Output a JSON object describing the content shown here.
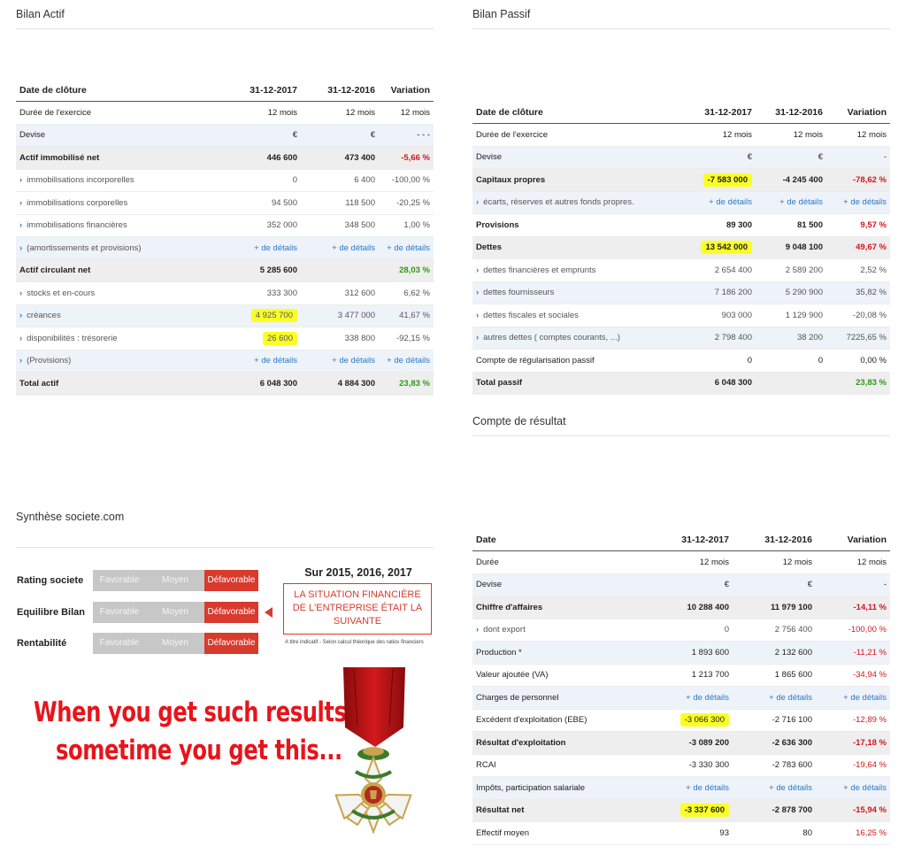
{
  "actif": {
    "title": "Bilan Actif",
    "headers": [
      "Date de clôture",
      "31-12-2017",
      "31-12-2016",
      "Variation"
    ],
    "rows": [
      {
        "label": "Durée de l'exercice",
        "c1": "12 mois",
        "c2": "12 mois",
        "var": "12 mois",
        "style": "normal"
      },
      {
        "label": "Devise",
        "c1": "€",
        "c2": "€",
        "var": "- - -",
        "style": "light"
      },
      {
        "label": "Actif immobilisé net",
        "c1": "446 600",
        "c2": "473 400",
        "var": "-5,66 %",
        "style": "bold",
        "varColor": "neg"
      },
      {
        "label": "immobilisations incorporelles",
        "c1": "0",
        "c2": "6 400",
        "var": "-100,00 %",
        "style": "normal",
        "chev": true,
        "sub": true
      },
      {
        "label": "immobilisations corporelles",
        "c1": "94 500",
        "c2": "118 500",
        "var": "-20,25 %",
        "style": "normal",
        "chev": true,
        "sub": true
      },
      {
        "label": "immobilisations financières",
        "c1": "352 000",
        "c2": "348 500",
        "var": "1,00 %",
        "style": "normal",
        "chev": true,
        "sub": true
      },
      {
        "label": "(amortissements et provisions)",
        "c1": "+ de détails",
        "c2": "+ de détails",
        "var": "+ de détails",
        "style": "light",
        "chev": true,
        "sub": true,
        "link": true
      },
      {
        "label": "Actif circulant net",
        "c1": "5 285 600",
        "c2": "",
        "var": "28,03 %",
        "style": "bold",
        "varColor": "pos"
      },
      {
        "label": "stocks et en-cours",
        "c1": "333 300",
        "c2": "312 600",
        "var": "6,62 %",
        "style": "normal",
        "chev": true,
        "sub": true
      },
      {
        "label": "créances",
        "c1": "4 925 700",
        "c2": "3 477 000",
        "var": "41,67 %",
        "style": "light",
        "chev": true,
        "sub": true,
        "hl": true
      },
      {
        "label": "disponibilités : trésorerie",
        "c1": "26 600",
        "c2": "338 800",
        "var": "-92,15 %",
        "style": "normal",
        "chev": true,
        "sub": true,
        "hl": true
      },
      {
        "label": "(Provisions)",
        "c1": "+ de détails",
        "c2": "+ de détails",
        "var": "+ de détails",
        "style": "light",
        "chev": true,
        "sub": true,
        "link": true
      },
      {
        "label": "Total actif",
        "c1": "6 048 300",
        "c2": "4 884 300",
        "var": "23,83 %",
        "style": "bold",
        "varColor": "pos"
      }
    ]
  },
  "passif": {
    "title": "Bilan Passif",
    "headers": [
      "Date de clôture",
      "31-12-2017",
      "31-12-2016",
      "Variation"
    ],
    "rows": [
      {
        "label": "Durée de l'exercice",
        "c1": "12 mois",
        "c2": "12 mois",
        "var": "12 mois",
        "style": "normal"
      },
      {
        "label": "Devise",
        "c1": "€",
        "c2": "€",
        "var": "-",
        "style": "light"
      },
      {
        "label": "Capitaux propres",
        "c1": "-7 583 000",
        "c2": "-4 245 400",
        "var": "-78,62 %",
        "style": "bold",
        "varColor": "neg",
        "hl": true
      },
      {
        "label": "écarts, réserves et autres fonds propres.",
        "c1": "+ de détails",
        "c2": "+ de détails",
        "var": "+ de détails",
        "style": "light",
        "chev": true,
        "sub": true,
        "link": true
      },
      {
        "label": "Provisions",
        "c1": "89 300",
        "c2": "81 500",
        "var": "9,57 %",
        "style": "normalbold",
        "varColor": "neg"
      },
      {
        "label": "Dettes",
        "c1": "13 542 000",
        "c2": "9 048 100",
        "var": "49,67 %",
        "style": "bold",
        "varColor": "neg",
        "hl": true
      },
      {
        "label": "dettes financières et emprunts",
        "c1": "2 654 400",
        "c2": "2 589 200",
        "var": "2,52 %",
        "style": "normal",
        "chev": true,
        "sub": true
      },
      {
        "label": "dettes fournisseurs",
        "c1": "7 186 200",
        "c2": "5 290 900",
        "var": "35,82 %",
        "style": "light",
        "chev": true,
        "sub": true
      },
      {
        "label": "dettes fiscales et sociales",
        "c1": "903 000",
        "c2": "1 129 900",
        "var": "-20,08 %",
        "style": "normal",
        "chev": true,
        "sub": true
      },
      {
        "label": "autres dettes ( comptes courants, ...)",
        "c1": "2 798 400",
        "c2": "38 200",
        "var": "7225,65 %",
        "style": "light",
        "chev": true,
        "sub": true
      },
      {
        "label": "Compte de régularisation passif",
        "c1": "0",
        "c2": "0",
        "var": "0,00 %",
        "style": "normal"
      },
      {
        "label": "Total passif",
        "c1": "6 048 300",
        "c2": "",
        "var": "23,83 %",
        "style": "bold",
        "varColor": "pos"
      }
    ]
  },
  "resultat": {
    "title": "Compte de résultat",
    "headers": [
      "Date",
      "31-12-2017",
      "31-12-2016",
      "Variation"
    ],
    "rows": [
      {
        "label": "Durée",
        "c1": "12 mois",
        "c2": "12 mois",
        "var": "12 mois",
        "style": "normal"
      },
      {
        "label": "Devise",
        "c1": "€",
        "c2": "€",
        "var": "-",
        "style": "light"
      },
      {
        "label": "Chiffre d'affaires",
        "c1": "10 288 400",
        "c2": "11 979 100",
        "var": "-14,11 %",
        "style": "bold",
        "varColor": "neg"
      },
      {
        "label": "dont export",
        "c1": "0",
        "c2": "2 756 400",
        "var": "-100,00 %",
        "style": "normal",
        "chev": true,
        "sub": true,
        "varColor": "neg"
      },
      {
        "label": "Production *",
        "c1": "1 893 600",
        "c2": "2 132 600",
        "var": "-11,21 %",
        "style": "light",
        "varColor": "neg"
      },
      {
        "label": "Valeur ajoutée (VA)",
        "c1": "1 213 700",
        "c2": "1 865 600",
        "var": "-34,94 %",
        "style": "normal",
        "varColor": "neg"
      },
      {
        "label": "Charges de personnel",
        "c1": "+ de détails",
        "c2": "+ de détails",
        "var": "+ de détails",
        "style": "light",
        "link": true
      },
      {
        "label": "Excédent d'exploitation (EBE)",
        "c1": "-3 066 300",
        "c2": "-2 716 100",
        "var": "-12,89 %",
        "style": "normal",
        "varColor": "neg",
        "hl": true
      },
      {
        "label": "Résultat d'exploitation",
        "c1": "-3 089 200",
        "c2": "-2 636 300",
        "var": "-17,18 %",
        "style": "bold",
        "varColor": "neg"
      },
      {
        "label": "RCAI",
        "c1": "-3 330 300",
        "c2": "-2 783 600",
        "var": "-19,64 %",
        "style": "normal",
        "varColor": "neg"
      },
      {
        "label": "Impôts, participation salariale",
        "c1": "+ de détails",
        "c2": "+ de détails",
        "var": "+ de détails",
        "style": "light",
        "link": true
      },
      {
        "label": "Résultat net",
        "c1": "-3 337 600",
        "c2": "-2 878 700",
        "var": "-15,94 %",
        "style": "bold",
        "varColor": "neg",
        "hl": true
      },
      {
        "label": "Effectif moyen",
        "c1": "93",
        "c2": "80",
        "var": "16,25 %",
        "style": "normal",
        "varColor": "neg"
      }
    ]
  },
  "synthese": {
    "title": "Synthèse societe.com",
    "period": "Sur 2015, 2016, 2017",
    "options": [
      "Favorable",
      "Moyen",
      "Défavorable"
    ],
    "ratings": [
      {
        "label": "Rating societe",
        "selected": "Défavorable"
      },
      {
        "label": "Equilibre Bilan",
        "selected": "Défavorable"
      },
      {
        "label": "Rentabilité",
        "selected": "Défavorable"
      }
    ],
    "box_text": "LA SITUATION FINANCIÈRE DE L'ENTREPRISE ÉTAIT LA SUIVANTE",
    "footnote": "A titre indicatif - Selon calcul théorique des ratios financiers"
  },
  "meme": {
    "line1": "When you get such results",
    "line2": "sometime you get this..."
  },
  "colors": {
    "negative": "#d4161c",
    "positive": "#2e9a10",
    "link": "#2b78c5",
    "highlight": "#fbff25",
    "selected": "#d83a2e"
  }
}
